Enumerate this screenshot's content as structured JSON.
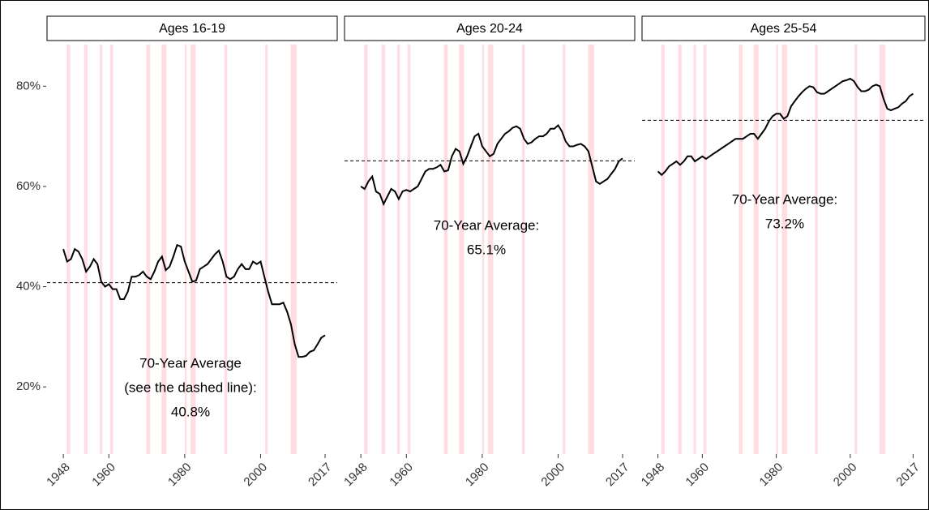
{
  "chart_data": [
    {
      "type": "line",
      "title": "Ages 16-19",
      "color": "#000000",
      "recession_color": "#ffdde3",
      "xlim": [
        1943.7,
        2020.2
      ],
      "ylim": [
        6.6,
        88.3
      ],
      "xticks": [
        1948,
        1960,
        1980,
        2000,
        2017
      ],
      "yticks": [
        {
          "value": 20,
          "label": "20%"
        },
        {
          "value": 40,
          "label": "40%"
        },
        {
          "value": 60,
          "label": "60%"
        },
        {
          "value": 80,
          "label": "80%"
        }
      ],
      "recessions": [
        [
          1948.9,
          1949.8
        ],
        [
          1953.5,
          1954.4
        ],
        [
          1957.6,
          1958.3
        ],
        [
          1960.3,
          1961.1
        ],
        [
          1969.9,
          1970.9
        ],
        [
          1973.9,
          1975.2
        ],
        [
          1980.0,
          1980.5
        ],
        [
          1981.5,
          1982.9
        ],
        [
          1990.5,
          1991.2
        ],
        [
          2001.2,
          2001.9
        ],
        [
          2007.9,
          2009.5
        ]
      ],
      "average": 40.8,
      "annotation": [
        "70-Year Average",
        "(see the dashed line):",
        "40.8%"
      ],
      "x": [
        1948,
        1949,
        1950,
        1951,
        1952,
        1953,
        1954,
        1955,
        1956,
        1957,
        1958,
        1959,
        1960,
        1961,
        1962,
        1963,
        1964,
        1965,
        1966,
        1967,
        1968,
        1969,
        1970,
        1971,
        1972,
        1973,
        1974,
        1975,
        1976,
        1977,
        1978,
        1979,
        1980,
        1981,
        1982,
        1983,
        1984,
        1985,
        1986,
        1987,
        1988,
        1989,
        1990,
        1991,
        1992,
        1993,
        1994,
        1995,
        1996,
        1997,
        1998,
        1999,
        2000,
        2001,
        2002,
        2003,
        2004,
        2005,
        2006,
        2007,
        2008,
        2009,
        2010,
        2011,
        2012,
        2013,
        2014,
        2015,
        2016,
        2017
      ],
      "values": [
        47.5,
        45,
        45.5,
        47.5,
        47,
        45.5,
        43,
        44,
        45.5,
        44.5,
        41,
        40,
        40.5,
        39.5,
        39.5,
        37.5,
        37.5,
        39,
        42,
        42,
        42.3,
        43,
        42,
        41.5,
        43,
        45,
        46,
        43.3,
        44,
        46,
        48.3,
        48,
        45,
        43,
        41,
        41.2,
        43.5,
        44,
        44.5,
        45.5,
        46.5,
        47.2,
        45,
        42,
        41.5,
        42,
        43.5,
        44.5,
        43.5,
        43.5,
        45,
        44.5,
        45,
        42,
        39,
        36.5,
        36.5,
        36.5,
        36.8,
        35,
        32.5,
        28.5,
        26,
        26,
        26.2,
        27,
        27.3,
        28.5,
        29.8,
        30.3
      ]
    },
    {
      "type": "line",
      "title": "Ages 20-24",
      "color": "#000000",
      "recession_color": "#ffdde3",
      "xlim": [
        1943.7,
        2020.2
      ],
      "ylim": [
        6.6,
        88.3
      ],
      "xticks": [
        1948,
        1960,
        1980,
        2000,
        2017
      ],
      "recessions": [
        [
          1948.9,
          1949.8
        ],
        [
          1953.5,
          1954.4
        ],
        [
          1957.6,
          1958.3
        ],
        [
          1960.3,
          1961.1
        ],
        [
          1969.9,
          1970.9
        ],
        [
          1973.9,
          1975.2
        ],
        [
          1980.0,
          1980.5
        ],
        [
          1981.5,
          1982.9
        ],
        [
          1990.5,
          1991.2
        ],
        [
          2001.2,
          2001.9
        ],
        [
          2007.9,
          2009.5
        ]
      ],
      "average": 65.1,
      "annotation": [
        "70-Year Average:",
        "65.1%"
      ],
      "x": [
        1948,
        1949,
        1950,
        1951,
        1952,
        1953,
        1954,
        1955,
        1956,
        1957,
        1958,
        1959,
        1960,
        1961,
        1962,
        1963,
        1964,
        1965,
        1966,
        1967,
        1968,
        1969,
        1970,
        1971,
        1972,
        1973,
        1974,
        1975,
        1976,
        1977,
        1978,
        1979,
        1980,
        1981,
        1982,
        1983,
        1984,
        1985,
        1986,
        1987,
        1988,
        1989,
        1990,
        1991,
        1992,
        1993,
        1994,
        1995,
        1996,
        1997,
        1998,
        1999,
        2000,
        2001,
        2002,
        2003,
        2004,
        2005,
        2006,
        2007,
        2008,
        2009,
        2010,
        2011,
        2012,
        2013,
        2014,
        2015,
        2016,
        2017
      ],
      "values": [
        60,
        59.5,
        61,
        62,
        59,
        58.5,
        56.5,
        58,
        59.5,
        59,
        57.5,
        59,
        59.3,
        59,
        59.5,
        60,
        61.5,
        63,
        63.5,
        63.5,
        63.8,
        64.3,
        63,
        63.2,
        66,
        67.5,
        67,
        64.5,
        66,
        68,
        70,
        70.5,
        68,
        67,
        66,
        66.5,
        68.5,
        69.5,
        70.5,
        71,
        71.7,
        72,
        71.5,
        69.5,
        68.5,
        68.8,
        69.5,
        70,
        70,
        70.5,
        71.5,
        71.5,
        72.2,
        71,
        69,
        68,
        68,
        68.3,
        68.5,
        68,
        67,
        64,
        61,
        60.5,
        61,
        61.5,
        62.5,
        63.5,
        65,
        65.6
      ]
    },
    {
      "type": "line",
      "title": "Ages 25-54",
      "color": "#000000",
      "recession_color": "#ffdde3",
      "xlim": [
        1943.7,
        2020.2
      ],
      "ylim": [
        6.6,
        88.3
      ],
      "xticks": [
        1948,
        1960,
        1980,
        2000,
        2017
      ],
      "recessions": [
        [
          1948.9,
          1949.8
        ],
        [
          1953.5,
          1954.4
        ],
        [
          1957.6,
          1958.3
        ],
        [
          1960.3,
          1961.1
        ],
        [
          1969.9,
          1970.9
        ],
        [
          1973.9,
          1975.2
        ],
        [
          1980.0,
          1980.5
        ],
        [
          1981.5,
          1982.9
        ],
        [
          1990.5,
          1991.2
        ],
        [
          2001.2,
          2001.9
        ],
        [
          2007.9,
          2009.5
        ]
      ],
      "average": 73.2,
      "annotation": [
        "70-Year Average:",
        "73.2%"
      ],
      "x": [
        1948,
        1949,
        1950,
        1951,
        1952,
        1953,
        1954,
        1955,
        1956,
        1957,
        1958,
        1959,
        1960,
        1961,
        1962,
        1963,
        1964,
        1965,
        1966,
        1967,
        1968,
        1969,
        1970,
        1971,
        1972,
        1973,
        1974,
        1975,
        1976,
        1977,
        1978,
        1979,
        1980,
        1981,
        1982,
        1983,
        1984,
        1985,
        1986,
        1987,
        1988,
        1989,
        1990,
        1991,
        1992,
        1993,
        1994,
        1995,
        1996,
        1997,
        1998,
        1999,
        2000,
        2001,
        2002,
        2003,
        2004,
        2005,
        2006,
        2007,
        2008,
        2009,
        2010,
        2011,
        2012,
        2013,
        2014,
        2015,
        2016,
        2017
      ],
      "values": [
        63,
        62.3,
        63,
        64,
        64.5,
        65,
        64.3,
        65,
        66,
        66,
        65,
        65.5,
        66,
        65.5,
        66,
        66.5,
        67,
        67.5,
        68,
        68.5,
        69,
        69.5,
        69.5,
        69.5,
        70,
        70.5,
        70.5,
        69.5,
        70.5,
        71.5,
        73,
        74,
        74.5,
        74.5,
        73.5,
        74,
        76,
        77,
        78,
        78.8,
        79.5,
        80,
        79.8,
        78.8,
        78.5,
        78.5,
        79,
        79.5,
        80,
        80.5,
        81,
        81.2,
        81.5,
        81,
        79.8,
        79,
        79,
        79.3,
        80,
        80.3,
        80,
        77.5,
        75.5,
        75.2,
        75.5,
        75.8,
        76.5,
        77,
        78,
        78.5
      ]
    }
  ]
}
